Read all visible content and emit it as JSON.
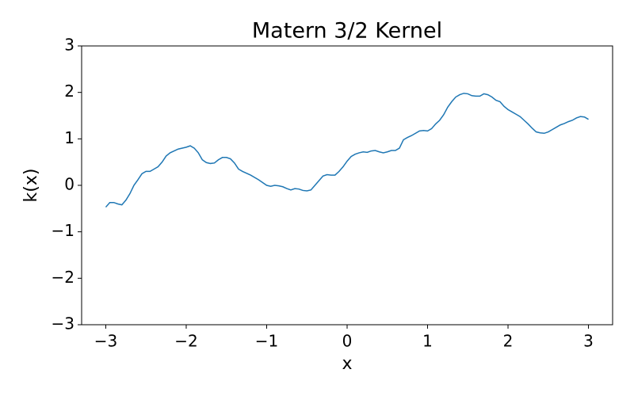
{
  "chart_data": {
    "type": "line",
    "title": "Matern 3/2 Kernel",
    "xlabel": "x",
    "ylabel": "k(x)",
    "x": [
      -3.0,
      -2.95,
      -2.9,
      -2.85,
      -2.8,
      -2.75,
      -2.7,
      -2.65,
      -2.6,
      -2.55,
      -2.5,
      -2.45,
      -2.4,
      -2.35,
      -2.3,
      -2.25,
      -2.2,
      -2.1,
      -2.0,
      -1.95,
      -1.9,
      -1.85,
      -1.8,
      -1.75,
      -1.7,
      -1.65,
      -1.6,
      -1.55,
      -1.5,
      -1.45,
      -1.4,
      -1.35,
      -1.3,
      -1.2,
      -1.1,
      -1.0,
      -0.95,
      -0.9,
      -0.85,
      -0.8,
      -0.75,
      -0.7,
      -0.65,
      -0.6,
      -0.55,
      -0.5,
      -0.45,
      -0.4,
      -0.35,
      -0.3,
      -0.25,
      -0.2,
      -0.15,
      -0.1,
      -0.05,
      0.0,
      0.05,
      0.1,
      0.15,
      0.2,
      0.25,
      0.3,
      0.35,
      0.4,
      0.45,
      0.5,
      0.55,
      0.6,
      0.65,
      0.7,
      0.75,
      0.8,
      0.9,
      0.95,
      1.0,
      1.05,
      1.1,
      1.15,
      1.2,
      1.25,
      1.3,
      1.35,
      1.4,
      1.45,
      1.5,
      1.55,
      1.6,
      1.65,
      1.7,
      1.75,
      1.8,
      1.85,
      1.9,
      1.95,
      2.0,
      2.05,
      2.1,
      2.15,
      2.2,
      2.25,
      2.3,
      2.35,
      2.4,
      2.45,
      2.5,
      2.55,
      2.6,
      2.65,
      2.7,
      2.75,
      2.8,
      2.85,
      2.9,
      2.95,
      3.0
    ],
    "values": [
      -0.47,
      -0.37,
      -0.37,
      -0.4,
      -0.42,
      -0.32,
      -0.18,
      0.0,
      0.12,
      0.25,
      0.3,
      0.3,
      0.35,
      0.4,
      0.5,
      0.63,
      0.7,
      0.78,
      0.82,
      0.85,
      0.8,
      0.7,
      0.55,
      0.49,
      0.47,
      0.48,
      0.55,
      0.6,
      0.6,
      0.57,
      0.48,
      0.35,
      0.3,
      0.22,
      0.12,
      0.0,
      -0.02,
      0.0,
      -0.01,
      -0.03,
      -0.07,
      -0.1,
      -0.07,
      -0.08,
      -0.11,
      -0.12,
      -0.1,
      0.0,
      0.1,
      0.2,
      0.23,
      0.22,
      0.22,
      0.3,
      0.4,
      0.52,
      0.62,
      0.67,
      0.7,
      0.72,
      0.71,
      0.74,
      0.75,
      0.72,
      0.7,
      0.72,
      0.75,
      0.75,
      0.8,
      0.98,
      1.03,
      1.07,
      1.17,
      1.18,
      1.17,
      1.22,
      1.32,
      1.4,
      1.52,
      1.68,
      1.8,
      1.9,
      1.95,
      1.98,
      1.97,
      1.93,
      1.92,
      1.92,
      1.97,
      1.95,
      1.9,
      1.83,
      1.8,
      1.7,
      1.63,
      1.58,
      1.53,
      1.48,
      1.4,
      1.32,
      1.23,
      1.15,
      1.13,
      1.12,
      1.15,
      1.2,
      1.25,
      1.3,
      1.33,
      1.37,
      1.4,
      1.45,
      1.48,
      1.47,
      1.42
    ],
    "color": "#1f77b4",
    "xlim": [
      -3.3,
      3.3
    ],
    "ylim": [
      -3,
      3
    ],
    "xticks": [
      {
        "value": -3,
        "label": "−3"
      },
      {
        "value": -2,
        "label": "−2"
      },
      {
        "value": -1,
        "label": "−1"
      },
      0,
      1,
      2,
      3
    ],
    "yticks": [
      {
        "value": -3,
        "label": "−3"
      },
      {
        "value": -2,
        "label": "−2"
      },
      {
        "value": -1,
        "label": "−1"
      },
      0,
      1,
      2,
      3
    ],
    "grid": false
  }
}
